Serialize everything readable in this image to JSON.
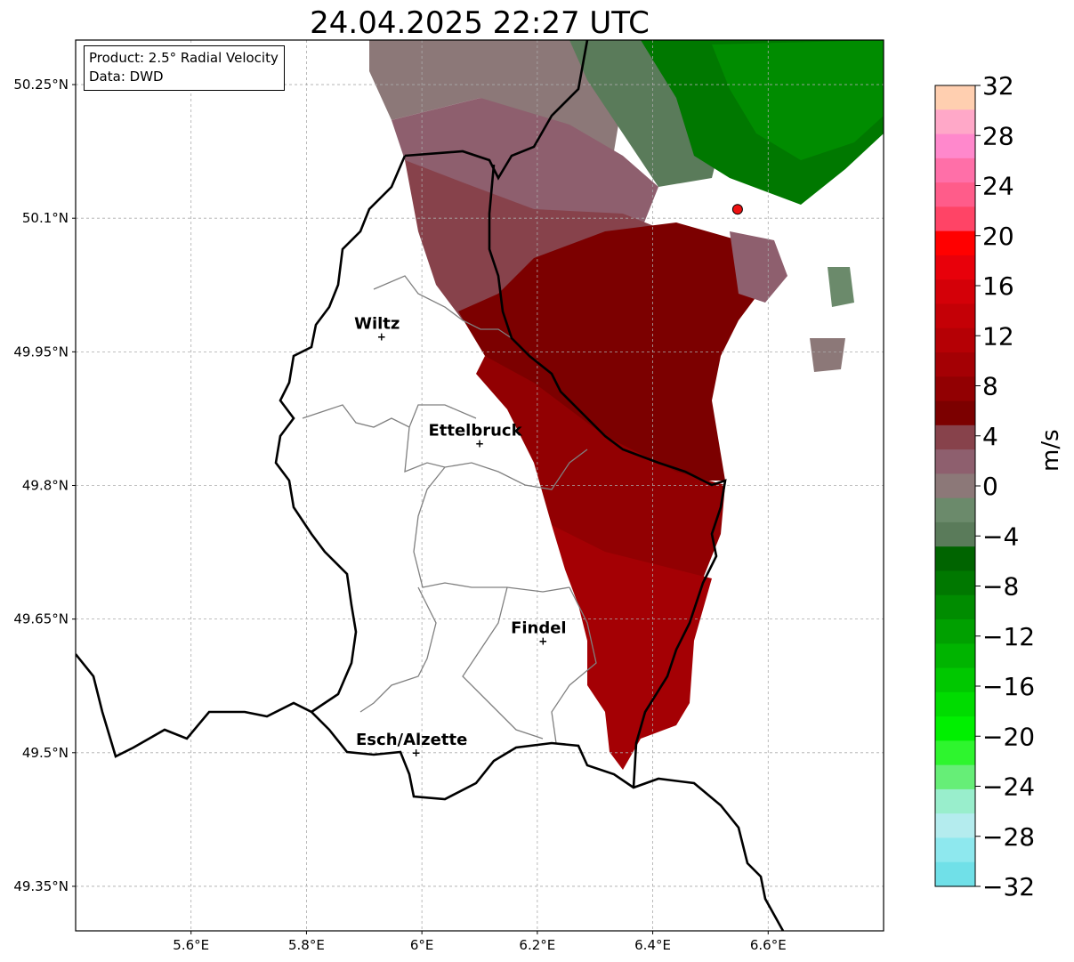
{
  "title": "24.04.2025 22:27 UTC",
  "info": {
    "product": "Product: 2.5° Radial Velocity",
    "data": "Data: DWD"
  },
  "map": {
    "lon_range": [
      5.4,
      6.8
    ],
    "lat_range": [
      49.3,
      50.3
    ],
    "lon_ticks": [
      5.6,
      5.8,
      6.0,
      6.2,
      6.4,
      6.6
    ],
    "lon_tick_labels": [
      "5.6°E",
      "5.8°E",
      "6°E",
      "6.2°E",
      "6.4°E",
      "6.6°E"
    ],
    "lat_ticks": [
      49.35,
      49.5,
      49.65,
      49.8,
      49.95,
      50.1,
      50.25
    ],
    "lat_tick_labels": [
      "49.35°N",
      "49.5°N",
      "49.65°N",
      "49.8°N",
      "49.95°N",
      "50.1°N",
      "50.25°N"
    ],
    "gridlines": true,
    "cities": [
      {
        "name": "Wiltz",
        "lon": 5.93,
        "lat": 49.967
      },
      {
        "name": "Ettelbruck",
        "lon": 6.1,
        "lat": 49.847
      },
      {
        "name": "Findel",
        "lon": 6.21,
        "lat": 49.625
      },
      {
        "name": "Esch/Alzette",
        "lon": 5.99,
        "lat": 49.5
      }
    ],
    "radar_site": {
      "lon": 6.547,
      "lat": 50.11,
      "color": "#ee1111"
    }
  },
  "colorbar": {
    "unit": "m/s",
    "ticks": [
      32,
      28,
      24,
      20,
      16,
      12,
      8,
      4,
      0,
      -4,
      -8,
      -12,
      -16,
      -20,
      -24,
      -28,
      -32
    ],
    "tick_labels": [
      "32",
      "28",
      "24",
      "20",
      "16",
      "12",
      "8",
      "4",
      "0",
      "−4",
      "−8",
      "−12",
      "−16",
      "−20",
      "−24",
      "−28",
      "−32"
    ],
    "colors_top_to_bottom": [
      "#ffcfb0",
      "#ffa8c8",
      "#ff88cc",
      "#ff6fa8",
      "#ff5c8a",
      "#ff4466",
      "#ff0000",
      "#e8000a",
      "#d40008",
      "#c40006",
      "#b50005",
      "#a40004",
      "#920002",
      "#7c0000",
      "#87424b",
      "#8e5f6e",
      "#8c7878",
      "#6b8a6b",
      "#5a7b5a",
      "#006400",
      "#007800",
      "#008c00",
      "#00a000",
      "#00b400",
      "#00c800",
      "#00dc00",
      "#00f000",
      "#2ef52e",
      "#66ee77",
      "#99eecc",
      "#b4ecee",
      "#8ee8ee",
      "#70e0e8"
    ]
  }
}
